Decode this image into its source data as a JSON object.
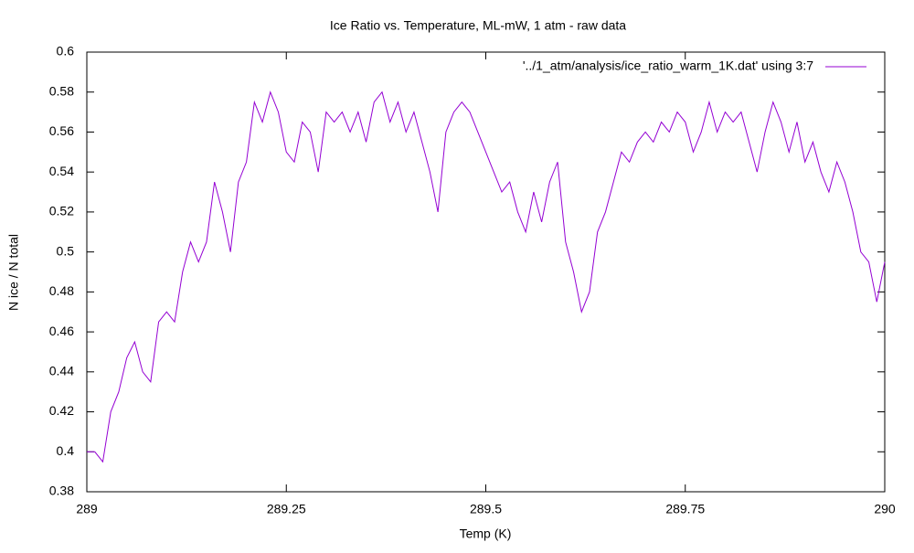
{
  "chart_data": {
    "type": "line",
    "title": "Ice Ratio vs. Temperature, ML-mW, 1 atm - raw data",
    "x_label": "Temp (K)",
    "y_label": "N ice / N total",
    "x": [
      289,
      289.01,
      289.02,
      289.03,
      289.04,
      289.05,
      289.06,
      289.07,
      289.08,
      289.09,
      289.1,
      289.11,
      289.12,
      289.13,
      289.14,
      289.15,
      289.16,
      289.17,
      289.18,
      289.19,
      289.2,
      289.21,
      289.22,
      289.23,
      289.24,
      289.25,
      289.26,
      289.27,
      289.28,
      289.29,
      289.3,
      289.31,
      289.32,
      289.33,
      289.34,
      289.35,
      289.36,
      289.37,
      289.38,
      289.39,
      289.4,
      289.41,
      289.42,
      289.43,
      289.44,
      289.45,
      289.46,
      289.47,
      289.48,
      289.49,
      289.5,
      289.51,
      289.52,
      289.53,
      289.54,
      289.55,
      289.56,
      289.57,
      289.58,
      289.59,
      289.6,
      289.61,
      289.62,
      289.63,
      289.64,
      289.65,
      289.66,
      289.67,
      289.68,
      289.69,
      289.7,
      289.71,
      289.72,
      289.73,
      289.74,
      289.75,
      289.76,
      289.77,
      289.78,
      289.79,
      289.8,
      289.81,
      289.82,
      289.83,
      289.84,
      289.85,
      289.86,
      289.87,
      289.88,
      289.89,
      289.9,
      289.91,
      289.92,
      289.93,
      289.94,
      289.95,
      289.96,
      289.97,
      289.98,
      289.99,
      290
    ],
    "series": [
      {
        "name": "'../1_atm/analysis/ice_ratio_warm_1K.dat' using 3:7",
        "color": "#9400d3",
        "values": [
          0.4,
          0.4,
          0.395,
          0.42,
          0.43,
          0.447,
          0.455,
          0.44,
          0.435,
          0.465,
          0.47,
          0.465,
          0.49,
          0.505,
          0.495,
          0.505,
          0.535,
          0.52,
          0.5,
          0.535,
          0.545,
          0.575,
          0.565,
          0.58,
          0.57,
          0.55,
          0.545,
          0.565,
          0.56,
          0.54,
          0.57,
          0.565,
          0.57,
          0.56,
          0.57,
          0.555,
          0.575,
          0.58,
          0.565,
          0.575,
          0.56,
          0.57,
          0.555,
          0.54,
          0.52,
          0.56,
          0.57,
          0.575,
          0.57,
          0.56,
          0.55,
          0.54,
          0.53,
          0.535,
          0.52,
          0.51,
          0.53,
          0.515,
          0.535,
          0.545,
          0.505,
          0.49,
          0.47,
          0.48,
          0.51,
          0.52,
          0.535,
          0.55,
          0.545,
          0.555,
          0.56,
          0.555,
          0.565,
          0.56,
          0.57,
          0.565,
          0.55,
          0.56,
          0.575,
          0.56,
          0.57,
          0.565,
          0.57,
          0.555,
          0.54,
          0.56,
          0.575,
          0.565,
          0.55,
          0.565,
          0.545,
          0.555,
          0.54,
          0.53,
          0.545,
          0.535,
          0.52,
          0.5,
          0.495,
          0.475,
          0.495
        ]
      }
    ],
    "xlim": [
      289,
      290
    ],
    "xticks": [
      289,
      289.25,
      289.5,
      289.75,
      290
    ],
    "ylim": [
      0.38,
      0.6
    ],
    "yticks": [
      0.38,
      0.4,
      0.42,
      0.44,
      0.46,
      0.48,
      0.5,
      0.52,
      0.54,
      0.56,
      0.58,
      0.6
    ],
    "legend": "top-right"
  }
}
